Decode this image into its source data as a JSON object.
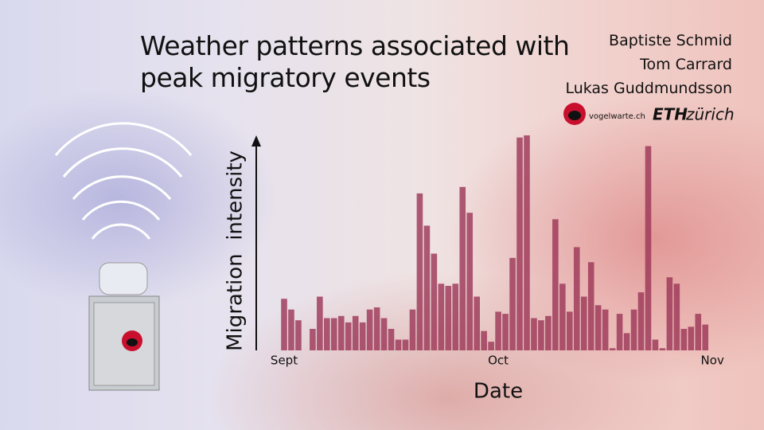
{
  "chart_data": {
    "type": "bar",
    "title": "Weather patterns associated with peak migratory events",
    "authors": [
      "Baptiste Schmid",
      "Tom Carrard",
      "Lukas Guddmundsson"
    ],
    "logos": [
      "vogelwarte.ch",
      "ETH",
      "zürich"
    ],
    "y_label": "Migration  intensity",
    "x_label": "Date",
    "categories": [
      "Sept",
      null,
      null,
      null,
      null,
      null,
      null,
      null,
      null,
      null,
      null,
      null,
      null,
      null,
      null,
      null,
      null,
      null,
      null,
      null,
      null,
      null,
      null,
      null,
      null,
      null,
      null,
      null,
      null,
      null,
      "Oct",
      null,
      null,
      null,
      null,
      null,
      null,
      null,
      null,
      null,
      null,
      null,
      null,
      null,
      null,
      null,
      null,
      null,
      null,
      null,
      null,
      null,
      null,
      null,
      null,
      null,
      null,
      null,
      null,
      null,
      "Nov"
    ],
    "values": [
      24,
      19,
      14,
      0,
      10,
      25,
      15,
      15,
      16,
      13,
      16,
      13,
      19,
      20,
      15,
      10,
      5,
      5,
      19,
      73,
      58,
      45,
      31,
      30,
      31,
      76,
      64,
      25,
      9,
      4,
      18,
      17,
      43,
      99,
      100,
      15,
      14,
      16,
      61,
      31,
      18,
      48,
      25,
      41,
      21,
      19,
      1,
      17,
      8,
      19,
      27,
      95,
      5,
      1,
      34,
      31,
      10,
      11,
      17,
      12,
      0
    ],
    "color": "#9b3556",
    "ylim": [
      0,
      100
    ]
  }
}
